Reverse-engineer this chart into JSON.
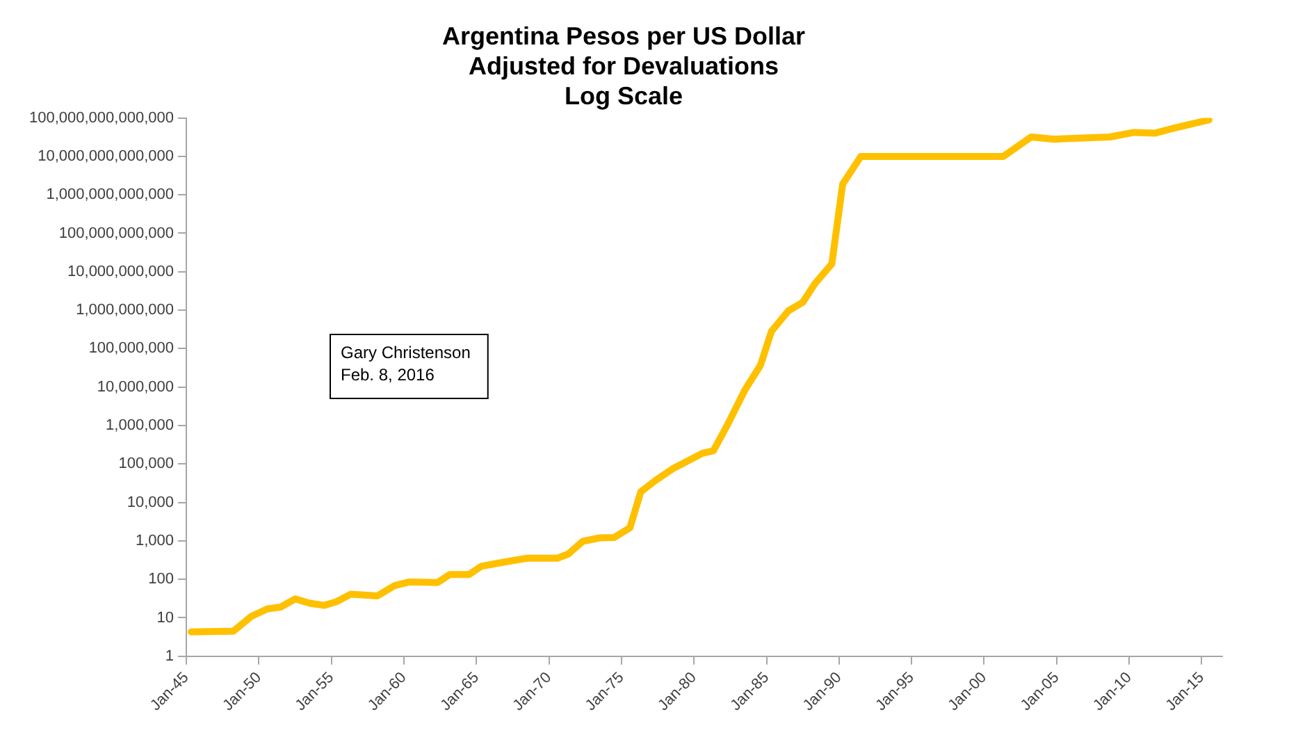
{
  "chart_data": {
    "type": "line",
    "title": "Argentina Pesos per US Dollar\nAdjusted for Devaluations\nLog Scale",
    "annotations": [
      "Gary Christenson",
      "Feb. 8, 2016"
    ],
    "log": "y",
    "grid": false,
    "legend": false,
    "marker": "none",
    "line_style": "solid",
    "x": [
      "1945-05",
      "1948-04",
      "1949-07",
      "1950-08",
      "1951-07",
      "1952-07",
      "1953-07",
      "1954-07",
      "1955-05",
      "1956-05",
      "1958-03",
      "1959-05",
      "1960-05",
      "1962-05",
      "1963-03",
      "1964-07",
      "1965-05",
      "1967-02",
      "1968-07",
      "1970-08",
      "1971-05",
      "1972-05",
      "1973-07",
      "1974-07",
      "1975-08",
      "1976-05",
      "1977-05",
      "1978-07",
      "1980-08",
      "1981-05",
      "1982-04",
      "1983-07",
      "1984-08",
      "1985-05",
      "1986-07",
      "1987-07",
      "1988-05",
      "1989-07",
      "1990-04",
      "1991-07",
      "2001-05",
      "2003-04",
      "2004-11",
      "2008-09",
      "2010-05",
      "2011-10",
      "2013-03",
      "2015-07"
    ],
    "series": [
      {
        "color": "#ffc000",
        "values": [
          4.3,
          4.5,
          11,
          17,
          19,
          31,
          24,
          21,
          26,
          41,
          37,
          68,
          85,
          83,
          134,
          134,
          218,
          288,
          355,
          355,
          455,
          975,
          1200,
          1230,
          2200,
          19000,
          37000,
          74000,
          190000,
          220000,
          950000,
          8300000,
          37000000,
          280000000,
          960000000,
          1600000000,
          4900000000,
          16000000000,
          1900000000000,
          10000000000000,
          10000000000000,
          32000000000000,
          28000000000000,
          32000000000000,
          42000000000000,
          40000000000000,
          55000000000000,
          89000000000000
        ]
      }
    ],
    "xlim": [
      "1945-01",
      "2016-06"
    ],
    "xticks": [
      {
        "value": "1945-01",
        "label": "Jan-45"
      },
      {
        "value": "1950-01",
        "label": "Jan-50"
      },
      {
        "value": "1955-01",
        "label": "Jan-55"
      },
      {
        "value": "1960-01",
        "label": "Jan-60"
      },
      {
        "value": "1965-01",
        "label": "Jan-65"
      },
      {
        "value": "1970-01",
        "label": "Jan-70"
      },
      {
        "value": "1975-01",
        "label": "Jan-75"
      },
      {
        "value": "1980-01",
        "label": "Jan-80"
      },
      {
        "value": "1985-01",
        "label": "Jan-85"
      },
      {
        "value": "1990-01",
        "label": "Jan-90"
      },
      {
        "value": "1995-01",
        "label": "Jan-95"
      },
      {
        "value": "2000-01",
        "label": "Jan-00"
      },
      {
        "value": "2005-01",
        "label": "Jan-05"
      },
      {
        "value": "2010-01",
        "label": "Jan-10"
      },
      {
        "value": "2015-01",
        "label": "Jan-15"
      }
    ],
    "ylim": [
      1,
      100000000000000
    ],
    "yticks": [
      1,
      10,
      100,
      {
        "value": 1000,
        "label": "1,000"
      },
      {
        "value": 10000,
        "label": "10,000"
      },
      {
        "value": 100000,
        "label": "100,000"
      },
      {
        "value": 1000000,
        "label": "1,000,000"
      },
      {
        "value": 10000000,
        "label": "10,000,000"
      },
      {
        "value": 100000000,
        "label": "100,000,000"
      },
      {
        "value": 1000000000,
        "label": "1,000,000,000"
      },
      {
        "value": 10000000000,
        "label": "10,000,000,000"
      },
      {
        "value": 100000000000,
        "label": "100,000,000,000"
      },
      {
        "value": 1000000000000,
        "label": "1,000,000,000,000"
      },
      {
        "value": 10000000000000,
        "label": "10,000,000,000,000"
      },
      {
        "value": 100000000000000,
        "label": "100,000,000,000,000"
      }
    ]
  }
}
